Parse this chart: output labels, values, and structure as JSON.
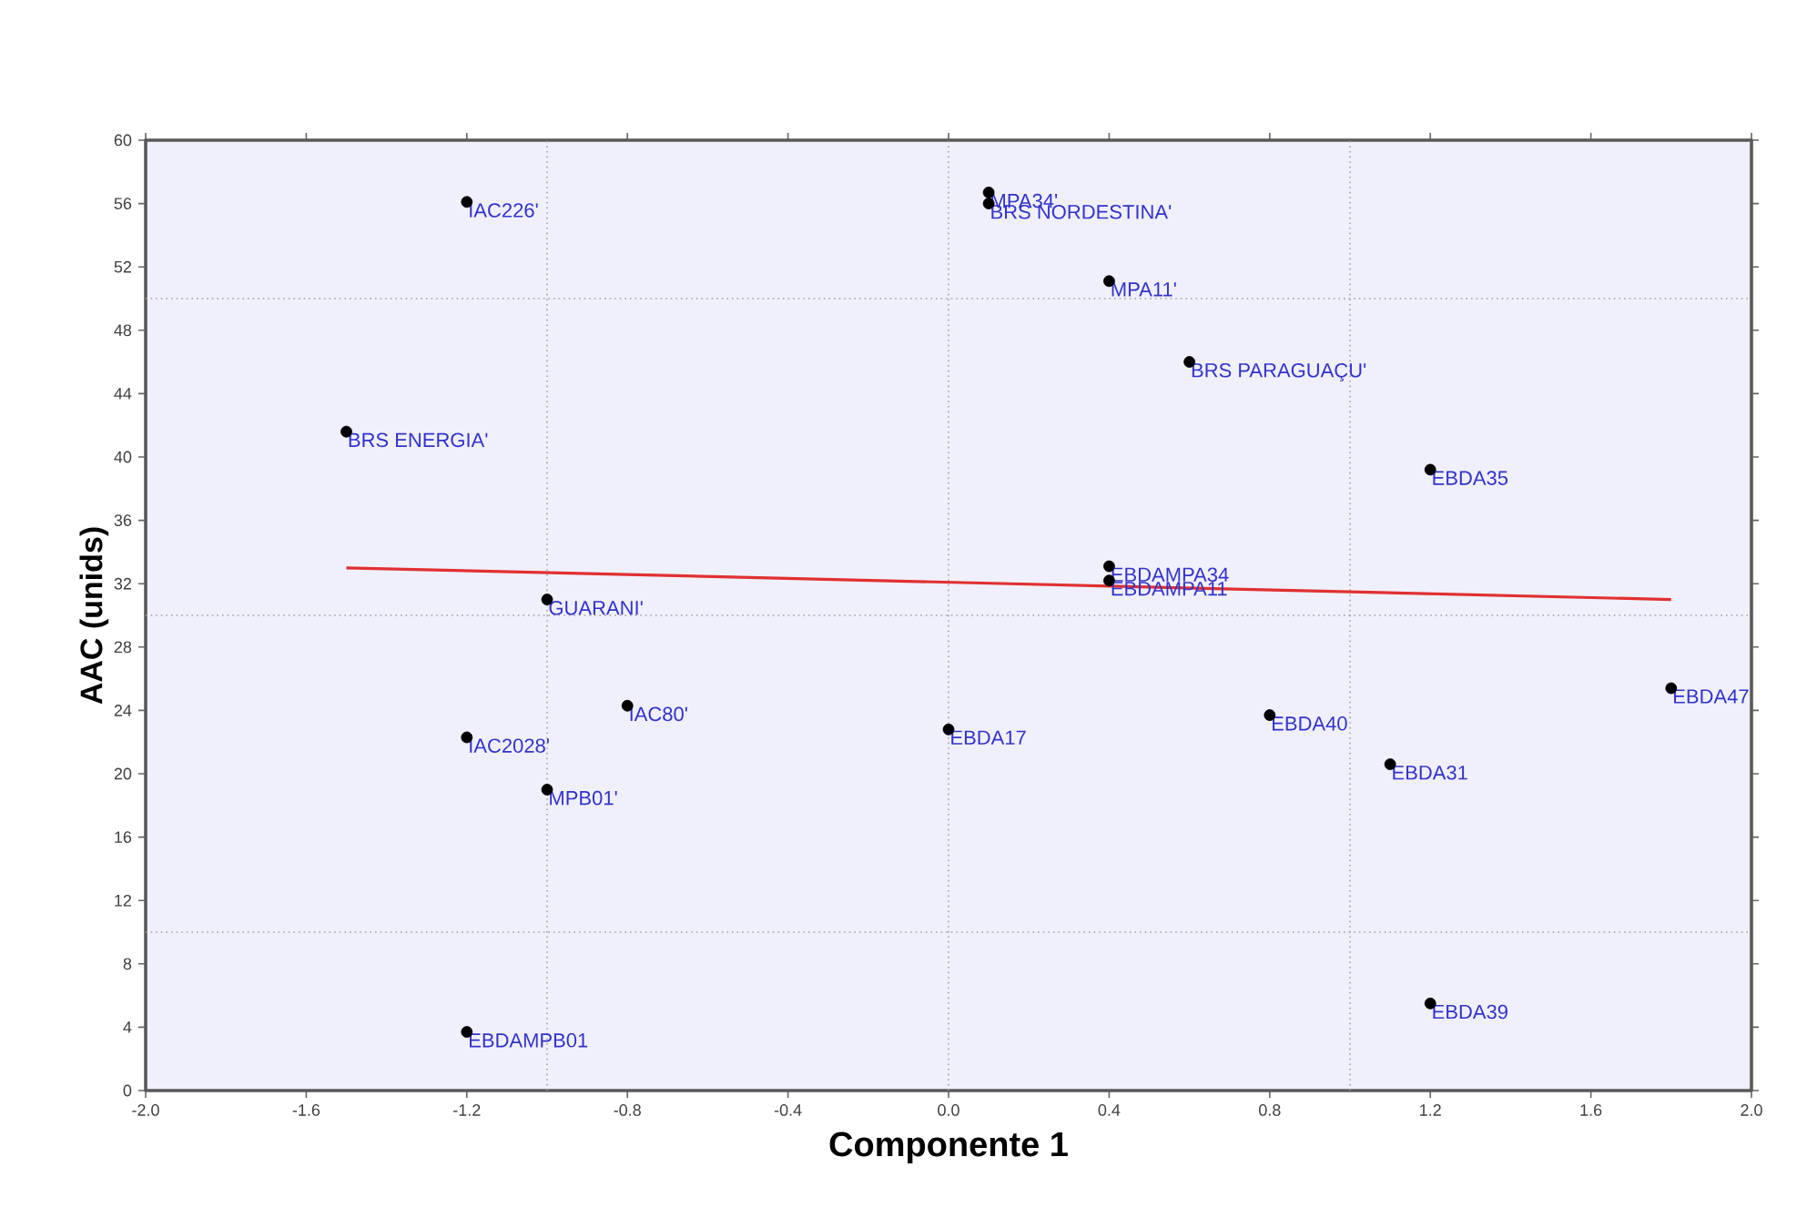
{
  "chart_data": {
    "type": "scatter",
    "xlabel": "Componente 1",
    "ylabel": "AAC (unids)",
    "xlim": [
      -2,
      2
    ],
    "ylim": [
      0,
      60
    ],
    "xticks": [
      {
        "value": -2,
        "label": "-2.0"
      },
      {
        "value": -1.6,
        "label": "-1.6"
      },
      {
        "value": -1.2,
        "label": "-1.2"
      },
      {
        "value": -0.8,
        "label": "-0.8"
      },
      {
        "value": -0.4,
        "label": "-0.4"
      },
      {
        "value": 0,
        "label": "0.0"
      },
      {
        "value": 0.4,
        "label": "0.4"
      },
      {
        "value": 0.8,
        "label": "0.8"
      },
      {
        "value": 1.2,
        "label": "1.2"
      },
      {
        "value": 1.6,
        "label": "1.6"
      },
      {
        "value": 2,
        "label": "2.0"
      }
    ],
    "yticks": [
      0,
      4,
      8,
      12,
      16,
      20,
      24,
      28,
      32,
      36,
      40,
      44,
      48,
      52,
      56,
      60
    ],
    "grid": false,
    "series": [
      {
        "marker": "circle",
        "color": "#000000",
        "x": [
          -1.2,
          -1.5,
          -1.0,
          0.1,
          0.1,
          0.4,
          0.6,
          1.2,
          0.4,
          0.4,
          -0.8,
          -1.2,
          -1.0,
          -1.2,
          0.0,
          0.8,
          1.1,
          1.8,
          1.2
        ],
        "values": [
          56.1,
          41.6,
          31.0,
          56.7,
          56.0,
          51.1,
          46.0,
          39.2,
          33.1,
          32.2,
          24.3,
          22.3,
          19.0,
          3.7,
          22.8,
          23.7,
          20.6,
          25.4,
          5.5
        ]
      },
      {
        "type": "line",
        "marker": "none",
        "color": "#e03030",
        "x": [
          -1.5,
          1.8
        ],
        "values": [
          33.0,
          31.0
        ]
      }
    ],
    "ref_lines": [
      {
        "axis": "x",
        "value": -1,
        "color": "#a0a0a0",
        "line_style": "dotted"
      },
      {
        "axis": "x",
        "value": 0,
        "color": "#a0a0a0",
        "line_style": "dotted"
      },
      {
        "axis": "x",
        "value": 1,
        "color": "#a0a0a0",
        "line_style": "dotted"
      },
      {
        "axis": "y",
        "value": 10,
        "color": "#a0a0a0",
        "line_style": "dotted"
      },
      {
        "axis": "y",
        "value": 30,
        "color": "#a0a0a0",
        "line_style": "dotted"
      },
      {
        "axis": "y",
        "value": 50,
        "color": "#a0a0a0",
        "line_style": "dotted"
      }
    ],
    "annotations": [
      {
        "text": "IAC226'",
        "x": -1.2,
        "y": 56.1
      },
      {
        "text": "BRS ENERGIA'",
        "x": -1.5,
        "y": 41.6
      },
      {
        "text": "GUARANI'",
        "x": -1.0,
        "y": 31.0
      },
      {
        "text": "MPA34'",
        "x": 0.1,
        "y": 56.7
      },
      {
        "text": "BRS NORDESTINA'",
        "x": 0.1,
        "y": 56.0
      },
      {
        "text": "MPA11'",
        "x": 0.4,
        "y": 51.1
      },
      {
        "text": "BRS PARAGUAÇU'",
        "x": 0.6,
        "y": 46.0
      },
      {
        "text": "EBDA35",
        "x": 1.2,
        "y": 39.2
      },
      {
        "text": "EBDAMPA34",
        "x": 0.4,
        "y": 33.1
      },
      {
        "text": "EBDAMPA11",
        "x": 0.4,
        "y": 32.2
      },
      {
        "text": "IAC80'",
        "x": -0.8,
        "y": 24.3
      },
      {
        "text": "IAC2028'",
        "x": -1.2,
        "y": 22.3
      },
      {
        "text": "MPB01'",
        "x": -1.0,
        "y": 19.0
      },
      {
        "text": "EBDAMPB01",
        "x": -1.2,
        "y": 3.7
      },
      {
        "text": "EBDA17",
        "x": 0.0,
        "y": 22.8
      },
      {
        "text": "EBDA40",
        "x": 0.8,
        "y": 23.7
      },
      {
        "text": "EBDA31",
        "x": 1.1,
        "y": 20.6
      },
      {
        "text": "EBDA47",
        "x": 1.8,
        "y": 25.4
      },
      {
        "text": "EBDA39",
        "x": 1.2,
        "y": 5.5
      }
    ]
  }
}
